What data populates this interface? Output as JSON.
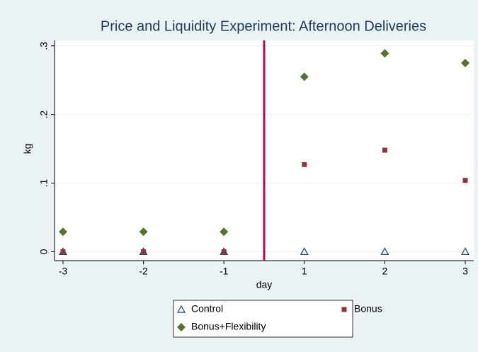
{
  "chart_data": {
    "type": "scatter",
    "title": "Price and Liquidity Experiment: Afternoon Deliveries",
    "xlabel": "day",
    "ylabel": "kg",
    "categories": [
      "-3",
      "-2",
      "-1",
      "1",
      "2",
      "3"
    ],
    "series": [
      {
        "name": "Control",
        "color": "#1a476f",
        "marker": "triangle-open",
        "values": [
          0,
          0,
          0,
          0,
          0,
          0
        ]
      },
      {
        "name": "Bonus",
        "color": "#90353b",
        "marker": "square",
        "values": [
          0,
          0,
          0,
          0.127,
          0.148,
          0.104
        ]
      },
      {
        "name": "Bonus+Flexibility",
        "color": "#55752f",
        "marker": "diamond",
        "values": [
          0.029,
          0.029,
          0.029,
          0.255,
          0.289,
          0.275
        ]
      }
    ],
    "ylim": [
      -0.013,
      0.308
    ],
    "yticks": [
      0,
      {
        "value": 0.1,
        "label": ".1"
      },
      {
        "value": 0.2,
        "label": ".2"
      },
      {
        "value": 0.3,
        "label": ".3"
      }
    ],
    "grid": true,
    "legend": "bottom"
  }
}
